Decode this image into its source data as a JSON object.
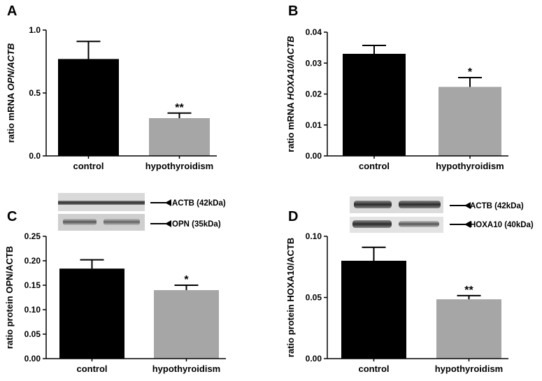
{
  "colors": {
    "control": "#000000",
    "hypothyroidism": "#a6a6a6"
  },
  "chart_data": [
    {
      "type": "bar",
      "panel_label": "A",
      "categories": [
        "control",
        "hypothyroidism"
      ],
      "values": [
        0.77,
        0.3
      ],
      "error": [
        0.14,
        0.04
      ],
      "significance": [
        "",
        "**"
      ],
      "ylabel_prefix": "ratio mRNA ",
      "ylabel_italic": "OPN/ACTB",
      "ylim": [
        0,
        1.0
      ],
      "yticks": [
        "0.0",
        "0.5",
        "1.0"
      ]
    },
    {
      "type": "bar",
      "panel_label": "B",
      "categories": [
        "control",
        "hypothyroidism"
      ],
      "values": [
        0.033,
        0.0223
      ],
      "error": [
        0.0027,
        0.003
      ],
      "significance": [
        "",
        "*"
      ],
      "ylabel_prefix": "ratio mRNA ",
      "ylabel_italic": "HOXA10/ACTB",
      "ylim": [
        0,
        0.04
      ],
      "yticks": [
        "0.00",
        "0.01",
        "0.02",
        "0.03",
        "0.04"
      ]
    },
    {
      "type": "bar",
      "panel_label": "C",
      "categories": [
        "control",
        "hypothyroidism"
      ],
      "values": [
        0.184,
        0.14
      ],
      "error": [
        0.018,
        0.01
      ],
      "significance": [
        "",
        "*"
      ],
      "ylabel_prefix": "ratio protein OPN/ACTB",
      "ylabel_italic": "",
      "ylim": [
        0,
        0.25
      ],
      "yticks": [
        "0.00",
        "0.05",
        "0.10",
        "0.15",
        "0.20",
        "0.25"
      ],
      "blot_labels": [
        "ACTB (42kDa)",
        "OPN (35kDa)"
      ]
    },
    {
      "type": "bar",
      "panel_label": "D",
      "categories": [
        "control",
        "hypothyroidism"
      ],
      "values": [
        0.08,
        0.0485
      ],
      "error": [
        0.011,
        0.003
      ],
      "significance": [
        "",
        "**"
      ],
      "ylabel_prefix": "ratio protein HOXA10/ACTB",
      "ylabel_italic": "",
      "ylim": [
        0,
        0.1
      ],
      "yticks": [
        "0.00",
        "0.05",
        "0.10"
      ],
      "blot_labels": [
        "ACTB (42kDa)",
        "HOXA10 (40kDa)"
      ]
    }
  ]
}
